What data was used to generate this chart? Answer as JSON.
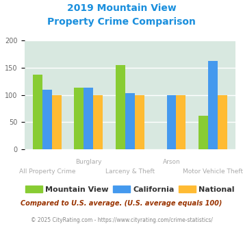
{
  "title_line1": "2019 Mountain View",
  "title_line2": "Property Crime Comparison",
  "title_color": "#1a8fdd",
  "categories": [
    "All Property Crime",
    "Burglary",
    "Larceny & Theft",
    "Arson",
    "Motor Vehicle Theft"
  ],
  "cat_labels_line1": [
    "",
    "Burglary",
    "",
    "Arson",
    ""
  ],
  "cat_labels_line2": [
    "All Property Crime",
    "",
    "Larceny & Theft",
    "",
    "Motor Vehicle Theft"
  ],
  "series": {
    "Mountain View": [
      138,
      113,
      155,
      0,
      62
    ],
    "California": [
      110,
      114,
      103,
      100,
      163
    ],
    "National": [
      100,
      100,
      100,
      100,
      100
    ]
  },
  "colors": {
    "Mountain View": "#88cc33",
    "California": "#4499ee",
    "National": "#ffbb33"
  },
  "ylim": [
    0,
    200
  ],
  "yticks": [
    0,
    50,
    100,
    150,
    200
  ],
  "footnote1": "Compared to U.S. average. (U.S. average equals 100)",
  "footnote2": "© 2025 CityRating.com - https://www.cityrating.com/crime-statistics/",
  "footnote1_color": "#993300",
  "footnote2_color": "#888888"
}
